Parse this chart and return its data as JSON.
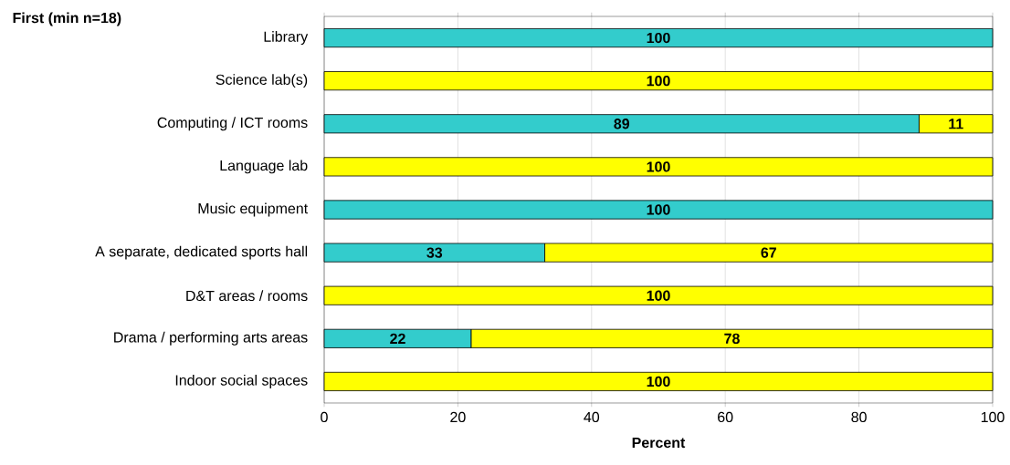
{
  "chart_data": {
    "type": "bar",
    "orientation": "horizontal",
    "stacked": true,
    "title": "First (min n=18)",
    "xlabel": "Percent",
    "categories": [
      "Library",
      "Science lab(s)",
      "Computing / ICT rooms",
      "Language lab",
      "Music equipment",
      "A separate, dedicated sports hall",
      "D&T areas / rooms",
      "Drama / performing arts areas",
      "Indoor social spaces"
    ],
    "series": [
      {
        "color": "#33cccc",
        "values": [
          100,
          null,
          89,
          null,
          100,
          33,
          null,
          22,
          null
        ]
      },
      {
        "color": "#ffff00",
        "values": [
          null,
          100,
          11,
          100,
          null,
          67,
          100,
          78,
          100
        ]
      }
    ],
    "xlim": [
      0,
      100
    ],
    "xticks": [
      0,
      20,
      40,
      60,
      80,
      100
    ],
    "grid": "x",
    "data_labels": true
  }
}
